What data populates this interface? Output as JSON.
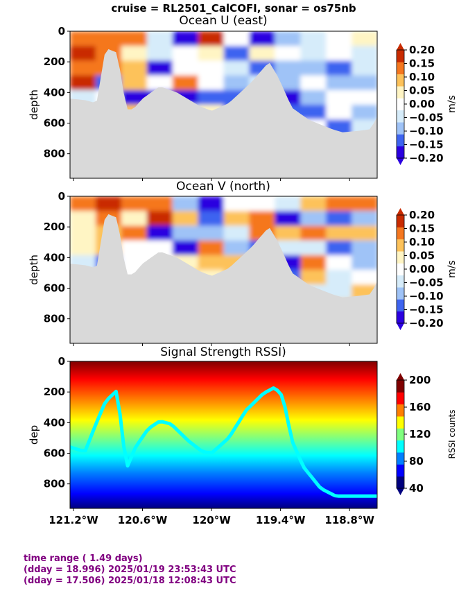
{
  "suptitle": "cruise = RL2501_CalCOFI,  sonar = os75nb",
  "footer": {
    "line1": "time range ( 1.49 days)",
    "line2": "(dday = 18.996) 2025/01/19 23:53:43 UTC",
    "line3": "(dday = 17.506) 2025/01/18 12:08:43 UTC"
  },
  "colors": {
    "mask": "#d9d9d9",
    "footer_text": "#800080",
    "diverging": [
      "#2b00e0",
      "#3e64f0",
      "#9fc3f7",
      "#d6ecfa",
      "#ffffff",
      "#fff5c4",
      "#fdc25a",
      "#f5771f",
      "#c92b00"
    ],
    "jet": [
      "#00007f",
      "#0000ff",
      "#007fff",
      "#00ffff",
      "#7fff7f",
      "#ffff00",
      "#ff7f00",
      "#ff0000",
      "#7f0000"
    ]
  },
  "chart_data": [
    {
      "type": "heatmap",
      "title": "Ocean U (east)",
      "ylabel": "depth",
      "ylim": [
        960,
        0
      ],
      "xlim": [
        -121.23,
        -118.56
      ],
      "yticks": [
        0,
        200,
        400,
        600,
        800
      ],
      "xticks": [
        -121.2,
        -120.6,
        -120.0,
        -119.4,
        -118.8
      ],
      "grid": false,
      "colorbar": {
        "label": "m/s",
        "ticks": [
          "0.20",
          "0.15",
          "0.10",
          "0.05",
          "0.00",
          "−0.05",
          "−0.10",
          "−0.15",
          "−0.20"
        ],
        "range": [
          -0.2,
          0.2
        ]
      },
      "bottom_depth": [
        [
          -121.23,
          440
        ],
        [
          -121.1,
          450
        ],
        [
          -121.0,
          470
        ],
        [
          -120.92,
          110
        ],
        [
          -120.82,
          140
        ],
        [
          -120.74,
          510
        ],
        [
          -120.68,
          510
        ],
        [
          -120.6,
          440
        ],
        [
          -120.45,
          360
        ],
        [
          -120.3,
          400
        ],
        [
          -120.1,
          490
        ],
        [
          -120.0,
          520
        ],
        [
          -119.85,
          470
        ],
        [
          -119.65,
          330
        ],
        [
          -119.5,
          200
        ],
        [
          -119.42,
          300
        ],
        [
          -119.3,
          500
        ],
        [
          -119.15,
          580
        ],
        [
          -119.05,
          610
        ],
        [
          -118.95,
          640
        ],
        [
          -118.86,
          660
        ],
        [
          -118.72,
          650
        ],
        [
          -118.62,
          640
        ],
        [
          -118.56,
          560
        ]
      ]
    },
    {
      "type": "heatmap",
      "title": "Ocean V (north)",
      "ylabel": "depth",
      "ylim": [
        960,
        0
      ],
      "xlim": [
        -121.23,
        -118.56
      ],
      "yticks": [
        0,
        200,
        400,
        600,
        800
      ],
      "xticks": [
        -121.2,
        -120.6,
        -120.0,
        -119.4,
        -118.8
      ],
      "grid": false,
      "colorbar": {
        "label": "m/s",
        "ticks": [
          "0.20",
          "0.15",
          "0.10",
          "0.05",
          "0.00",
          "−0.05",
          "−0.10",
          "−0.15",
          "−0.20"
        ],
        "range": [
          -0.2,
          0.2
        ]
      }
    },
    {
      "type": "heatmap",
      "title": "Signal Strength RSSI)",
      "ylabel": "dep",
      "ylim": [
        960,
        0
      ],
      "xlim": [
        -121.23,
        -118.56
      ],
      "yticks": [
        0,
        200,
        400,
        600,
        800
      ],
      "xticks": [
        -121.2,
        -120.6,
        -120.0,
        -119.4,
        -118.8
      ],
      "xticklabels": [
        "121.2°W",
        "120.6°W",
        "120°W",
        "119.4°W",
        "118.8°W"
      ],
      "grid": false,
      "colorbar": {
        "label": "RSSI counts",
        "ticks": [
          "200",
          "160",
          "120",
          "80",
          "40"
        ],
        "range": [
          10,
          220
        ]
      },
      "scattering_layer_depth": [
        [
          -121.23,
          560
        ],
        [
          -121.1,
          590
        ],
        [
          -121.0,
          400
        ],
        [
          -120.92,
          260
        ],
        [
          -120.82,
          190
        ],
        [
          -120.74,
          700
        ],
        [
          -120.66,
          560
        ],
        [
          -120.55,
          440
        ],
        [
          -120.45,
          390
        ],
        [
          -120.35,
          410
        ],
        [
          -120.2,
          520
        ],
        [
          -120.08,
          590
        ],
        [
          -120.0,
          600
        ],
        [
          -119.85,
          500
        ],
        [
          -119.7,
          320
        ],
        [
          -119.55,
          210
        ],
        [
          -119.45,
          170
        ],
        [
          -119.38,
          230
        ],
        [
          -119.3,
          520
        ],
        [
          -119.2,
          690
        ],
        [
          -119.05,
          830
        ],
        [
          -118.92,
          880
        ],
        [
          -118.8,
          880
        ],
        [
          -118.7,
          880
        ]
      ]
    }
  ]
}
